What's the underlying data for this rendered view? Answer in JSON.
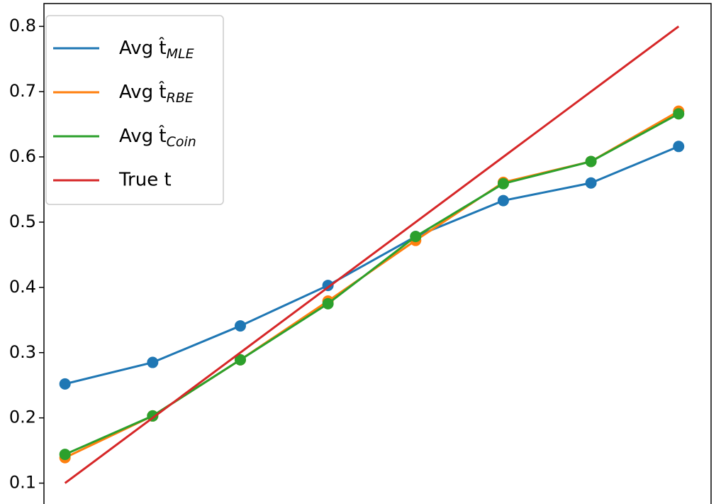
{
  "chart_data": {
    "type": "line",
    "x": [
      0.1,
      0.2,
      0.3,
      0.4,
      0.5,
      0.6,
      0.7,
      0.8
    ],
    "series": [
      {
        "name": "Avg t̂MLE",
        "color": "#1f77b4",
        "markers": true,
        "values": [
          0.252,
          0.285,
          0.341,
          0.403,
          0.478,
          0.533,
          0.56,
          0.616
        ]
      },
      {
        "name": "Avg t̂RBE",
        "color": "#ff7f0e",
        "markers": true,
        "values": [
          0.139,
          0.203,
          0.289,
          0.379,
          0.472,
          0.561,
          0.593,
          0.67
        ]
      },
      {
        "name": "Avg t̂Coin",
        "color": "#2ca02c",
        "markers": true,
        "values": [
          0.144,
          0.203,
          0.289,
          0.375,
          0.478,
          0.559,
          0.593,
          0.666
        ]
      },
      {
        "name": "True t",
        "color": "#d62728",
        "markers": false,
        "values": [
          0.1,
          0.2,
          0.3,
          0.4,
          0.5,
          0.6,
          0.7,
          0.8
        ]
      }
    ],
    "xlim": [
      0.076,
      0.837
    ],
    "ylim": [
      0.068,
      0.835
    ],
    "yticks": [
      0.1,
      0.2,
      0.3,
      0.4,
      0.5,
      0.6,
      0.7,
      0.8
    ],
    "legend": "upper left"
  }
}
